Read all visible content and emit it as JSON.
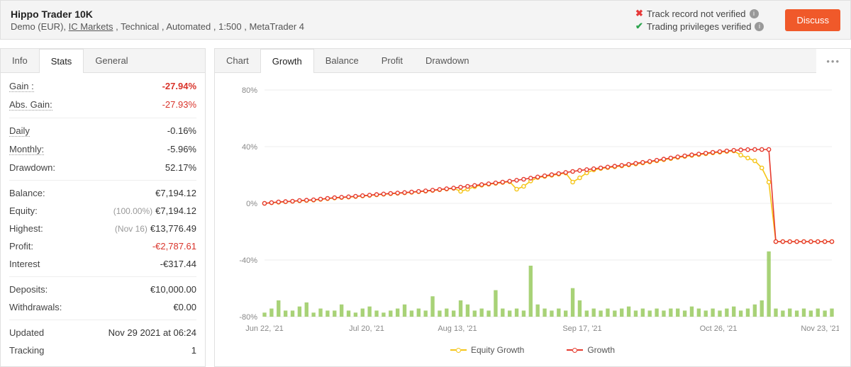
{
  "header": {
    "title": "Hippo Trader 10K",
    "subtitle_parts": [
      "Demo (EUR), ",
      "IC Markets",
      " , Technical , Automated , 1:500 , MetaTrader 4"
    ],
    "verify1": "Track record not verified",
    "verify2": "Trading privileges verified",
    "discuss": "Discuss"
  },
  "side_tabs": {
    "info": "Info",
    "stats": "Stats",
    "general": "General"
  },
  "stats": {
    "gain_label": "Gain :",
    "gain_val": "-27.94%",
    "absgain_label": "Abs. Gain:",
    "absgain_val": "-27.93%",
    "daily_label": "Daily",
    "daily_val": "-0.16%",
    "monthly_label": "Monthly:",
    "monthly_val": "-5.96%",
    "drawdown_label": "Drawdown:",
    "drawdown_val": "52.17%",
    "balance_label": "Balance:",
    "balance_val": "€7,194.12",
    "equity_label": "Equity:",
    "equity_sub": "(100.00%)",
    "equity_val": "€7,194.12",
    "highest_label": "Highest:",
    "highest_sub": "(Nov 16)",
    "highest_val": "€13,776.49",
    "profit_label": "Profit:",
    "profit_val": "-€2,787.61",
    "interest_label": "Interest",
    "interest_val": "-€317.44",
    "deposits_label": "Deposits:",
    "deposits_val": "€10,000.00",
    "withdrawals_label": "Withdrawals:",
    "withdrawals_val": "€0.00",
    "updated_label": "Updated",
    "updated_val": "Nov 29 2021 at 06:24",
    "tracking_label": "Tracking",
    "tracking_val": "1"
  },
  "chart_tabs": {
    "chart": "Chart",
    "growth": "Growth",
    "balance": "Balance",
    "profit": "Profit",
    "drawdown": "Drawdown"
  },
  "legend": {
    "equity": "Equity Growth",
    "growth": "Growth"
  },
  "chart": {
    "type": "line",
    "ylim": [
      -80,
      80
    ],
    "yticks": [
      -80,
      -40,
      0,
      40,
      80
    ],
    "ytick_labels": [
      "-80%",
      "-40%",
      "0%",
      "40%",
      "80%"
    ],
    "x_labels": [
      "Jun 22, '21",
      "Jul 20, '21",
      "Aug 13, '21",
      "Sep 17, '21",
      "Oct 26, '21",
      "Nov 23, '21"
    ],
    "colors": {
      "growth": "#e63b2e",
      "equity": "#f5c518",
      "grid": "#eeeeee",
      "axis_text": "#888888",
      "bars": "#8bc34a",
      "background": "#ffffff"
    },
    "marker_radius": 2.6,
    "line_width": 1.6,
    "growth_series": [
      0,
      0.5,
      1,
      1.2,
      1.5,
      2,
      2.2,
      2.5,
      3,
      3.5,
      4,
      4.3,
      4.6,
      5,
      5.4,
      5.8,
      6.2,
      6.6,
      7,
      7.3,
      7.6,
      8,
      8.4,
      8.8,
      9.3,
      9.8,
      10.3,
      10.8,
      11.4,
      12,
      12.6,
      13.2,
      13.8,
      14.4,
      15,
      15.6,
      16.3,
      17,
      17.8,
      18.6,
      19.4,
      20.2,
      21,
      21.8,
      22.5,
      23.2,
      23.8,
      24.4,
      25,
      25.6,
      26.2,
      26.8,
      27.5,
      28.2,
      28.9,
      29.6,
      30.4,
      31.2,
      32,
      32.8,
      33.5,
      34.2,
      34.8,
      35.4,
      36,
      36.5,
      37,
      37.4,
      37.7,
      37.9,
      38,
      38,
      38,
      -27,
      -27,
      -27,
      -27,
      -27,
      -27,
      -27,
      -27,
      -27
    ],
    "equity_series": [
      0,
      0.4,
      0.8,
      1.1,
      1.4,
      1.8,
      2,
      2.3,
      2.8,
      3.3,
      3.8,
      4.1,
      4.4,
      4.8,
      5.2,
      5.6,
      6,
      6.4,
      6.8,
      7.1,
      7.4,
      7.8,
      8.2,
      8.6,
      9.1,
      9.6,
      10.1,
      10.6,
      8.5,
      10,
      11.8,
      12.8,
      13.5,
      14.1,
      14.7,
      15.3,
      10,
      12,
      15.8,
      18.2,
      19,
      19.8,
      20.6,
      21.4,
      15,
      18,
      21.5,
      23.6,
      24.6,
      25.2,
      25.8,
      26.4,
      27.1,
      27.8,
      28.5,
      29.2,
      30,
      30.8,
      31.6,
      32.4,
      33.1,
      33.8,
      34.4,
      35,
      35.6,
      36.1,
      36.6,
      37,
      34,
      32,
      30,
      25,
      15,
      -27,
      -27,
      -27,
      -27,
      -27,
      -27,
      -27,
      -27,
      -27
    ],
    "bars": [
      2,
      4,
      8,
      3,
      3,
      5,
      7,
      2,
      4,
      3,
      3,
      6,
      3,
      2,
      4,
      5,
      3,
      2,
      3,
      4,
      6,
      3,
      4,
      3,
      10,
      3,
      4,
      3,
      8,
      6,
      3,
      4,
      3,
      13,
      4,
      3,
      4,
      3,
      25,
      6,
      4,
      3,
      4,
      3,
      14,
      8,
      3,
      4,
      3,
      4,
      3,
      4,
      5,
      3,
      4,
      3,
      4,
      3,
      4,
      4,
      3,
      5,
      4,
      3,
      4,
      3,
      4,
      5,
      3,
      4,
      6,
      8,
      32,
      4,
      3,
      4,
      3,
      4,
      3,
      4,
      3,
      4
    ]
  }
}
